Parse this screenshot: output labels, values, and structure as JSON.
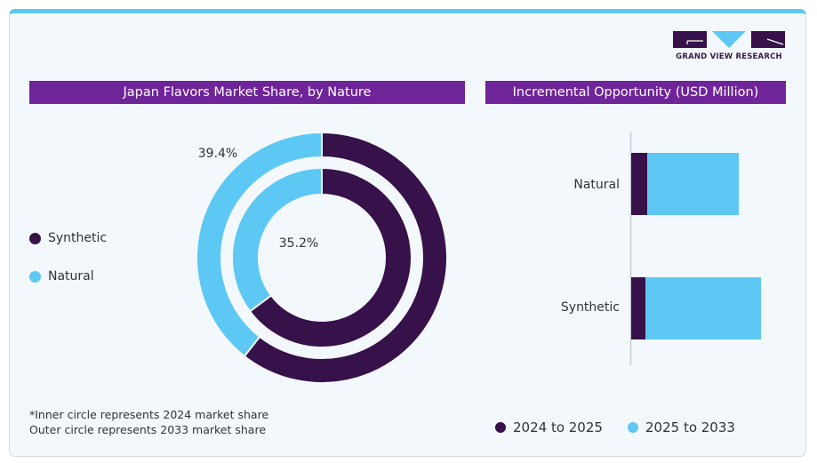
{
  "brand": {
    "name": "GRAND VIEW RESEARCH",
    "colors": {
      "dark": "#36114a",
      "light": "#5cc8f3",
      "header": "#6f2499",
      "top_border": "#5cc8f3"
    }
  },
  "left_panel": {
    "title": "Japan Flavors Market Share, by Nature",
    "legend": [
      {
        "label": "Synthetic",
        "color": "#36114a"
      },
      {
        "label": "Natural",
        "color": "#5cc8f3"
      }
    ],
    "footnote": [
      "*Inner circle represents 2024 market share",
      "Outer circle represents 2033 market share"
    ]
  },
  "right_panel": {
    "title": "Incremental Opportunity (USD Million)",
    "legend": [
      {
        "label": "2024 to 2025",
        "color": "#36114a"
      },
      {
        "label": "2025 to 2033",
        "color": "#5cc8f3"
      }
    ]
  },
  "chart_data": [
    {
      "type": "pie",
      "variant": "nested-donut",
      "title": "Japan Flavors Market Share, by Nature",
      "rings": [
        {
          "name": "2024",
          "position": "inner",
          "slices": [
            {
              "label": "Natural",
              "value": 35.2,
              "color": "#5cc8f3",
              "data_label": "35.2%"
            },
            {
              "label": "Synthetic",
              "value": 64.8,
              "color": "#36114a",
              "data_label": ""
            }
          ]
        },
        {
          "name": "2033",
          "position": "outer",
          "slices": [
            {
              "label": "Natural",
              "value": 39.4,
              "color": "#5cc8f3",
              "data_label": "39.4%"
            },
            {
              "label": "Synthetic",
              "value": 60.6,
              "color": "#36114a",
              "data_label": ""
            }
          ]
        }
      ],
      "legend_position": "left"
    },
    {
      "type": "bar",
      "orientation": "horizontal",
      "stacked": true,
      "title": "Incremental Opportunity (USD Million)",
      "categories": [
        "Natural",
        "Synthetic"
      ],
      "series": [
        {
          "name": "2024 to 2025",
          "color": "#36114a",
          "values": [
            18,
            16
          ]
        },
        {
          "name": "2025 to 2033",
          "color": "#5cc8f3",
          "values": [
            103,
            130
          ]
        }
      ],
      "value_axis_visible": false,
      "units_note": "relative values, no axis ticks shown",
      "xlim": [
        0,
        160
      ],
      "legend_position": "bottom"
    }
  ]
}
